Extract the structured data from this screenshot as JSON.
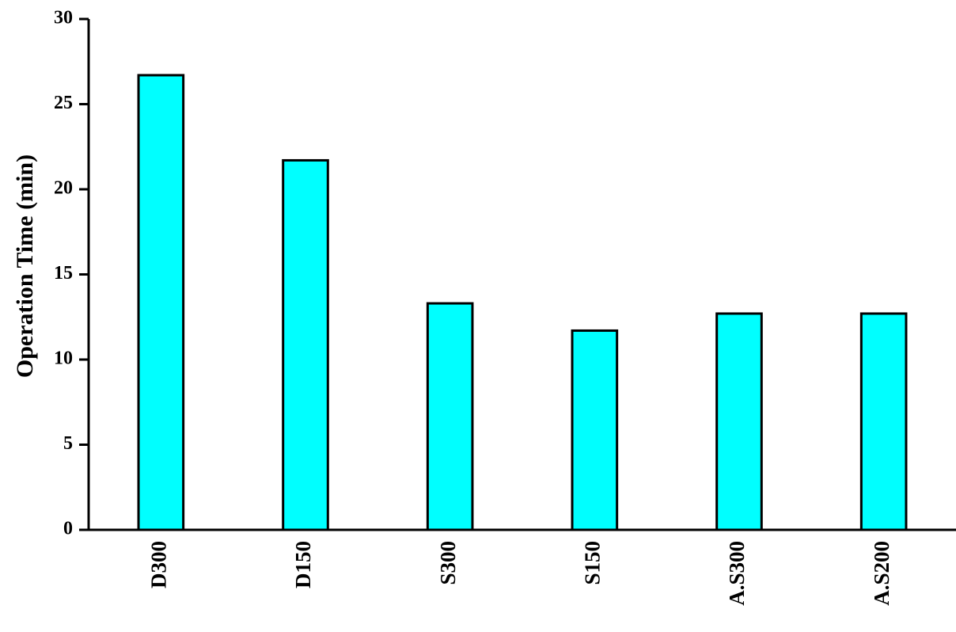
{
  "chart_data": {
    "type": "bar",
    "ylabel": "Operation Time (min)",
    "categories": [
      "D300",
      "D150",
      "S300",
      "S150",
      "A.S300",
      "A.S200"
    ],
    "values": [
      26.7,
      21.7,
      13.3,
      11.7,
      12.7,
      12.7
    ],
    "color": "#00ffff",
    "ylim": [
      0,
      30
    ],
    "yticks": [
      0,
      5,
      10,
      15,
      20,
      25,
      30
    ],
    "grid": false
  }
}
